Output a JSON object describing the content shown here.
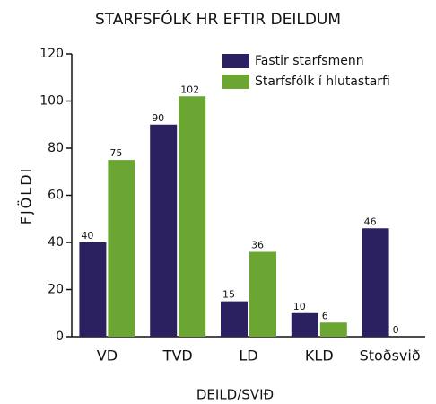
{
  "chart_data": {
    "type": "bar",
    "title": "STARFSFÓLK HR EFTIR DEILDUM",
    "xlabel": "DEILD/SVIÐ",
    "ylabel": "FJÖLDI",
    "categories": [
      "VD",
      "TVD",
      "LD",
      "KLD",
      "Stoðsvið"
    ],
    "series": [
      {
        "name": "Fastir starfsmenn",
        "color": "#2b2160",
        "values": [
          40,
          90,
          15,
          10,
          46
        ]
      },
      {
        "name": "Starfsfólk í hlutastarfi",
        "color": "#6ba532",
        "values": [
          75,
          102,
          36,
          6,
          0
        ]
      }
    ],
    "ylim": [
      0,
      120
    ],
    "yticks": [
      0,
      20,
      40,
      60,
      80,
      100,
      120
    ],
    "grid": false,
    "legend": "upper right"
  }
}
